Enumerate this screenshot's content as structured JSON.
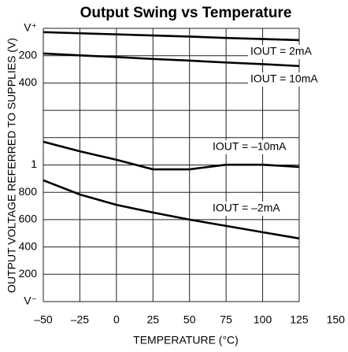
{
  "chart_data": {
    "type": "line",
    "title": "Output Swing vs Temperature",
    "x_label": "TEMPERATURE (°C)",
    "y_label": "OUTPUT VOLTAGE REFERRED TO SUPPLIES (V)",
    "xlim": [
      -50,
      150
    ],
    "xticks": [
      {
        "value": -50,
        "label": "–50"
      },
      {
        "value": -25,
        "label": "–25"
      },
      0,
      25,
      50,
      75,
      100,
      125,
      150
    ],
    "ylim": [
      0,
      10
    ],
    "yticks": [
      {
        "value": 0,
        "label": "V⁻"
      },
      {
        "value": 1,
        "label": "200"
      },
      {
        "value": 2,
        "label": "400"
      },
      {
        "value": 3,
        "label": "600"
      },
      {
        "value": 4,
        "label": "800"
      },
      {
        "value": 5,
        "label": "1"
      },
      {
        "value": 6,
        "label": null
      },
      {
        "value": 7,
        "label": null
      },
      {
        "value": 8,
        "label": "400"
      },
      {
        "value": 9,
        "label": "200"
      },
      {
        "value": 10,
        "label": "V⁺"
      }
    ],
    "grid": true,
    "x": [
      -50,
      -25,
      0,
      25,
      50,
      75,
      100,
      125
    ],
    "series": [
      {
        "name": "IOUT = 2mA",
        "color": "#000000",
        "values": [
          9.86,
          9.82,
          9.78,
          9.74,
          9.7,
          9.65,
          9.61,
          9.57
        ]
      },
      {
        "name": "IOUT = 10mA",
        "color": "#000000",
        "values": [
          9.08,
          9.01,
          8.95,
          8.88,
          8.82,
          8.75,
          8.69,
          8.62
        ]
      },
      {
        "name": "IOUT = –10mA",
        "color": "#000000",
        "values": [
          5.85,
          5.5,
          5.19,
          4.84,
          4.84,
          5.01,
          5.01,
          4.93
        ]
      },
      {
        "name": "IOUT = –2mA",
        "color": "#000000",
        "values": [
          4.44,
          3.92,
          3.54,
          3.26,
          3.0,
          2.77,
          2.54,
          2.31
        ]
      }
    ]
  }
}
